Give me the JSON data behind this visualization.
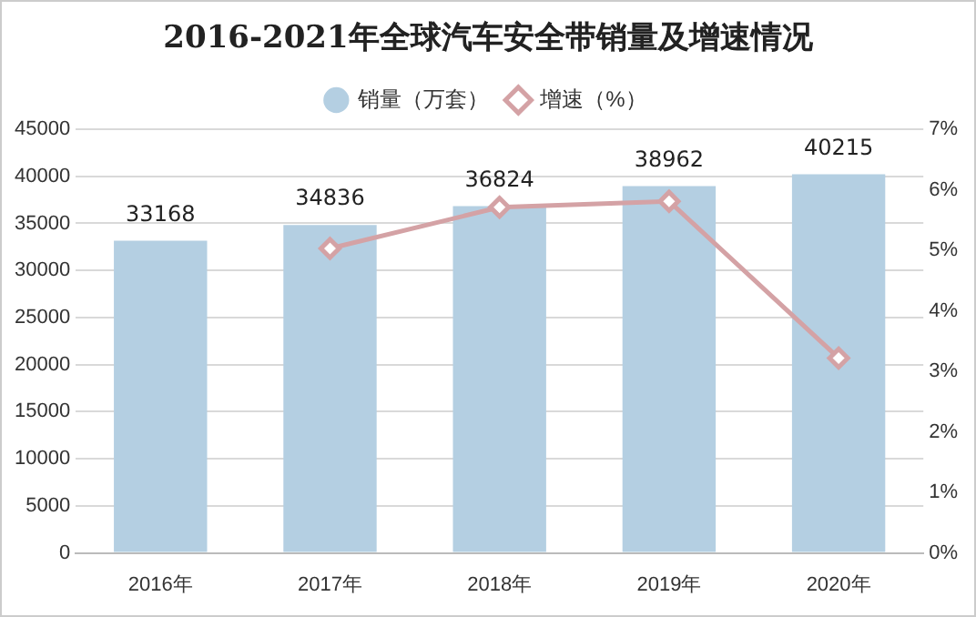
{
  "chart_data": {
    "type": "bar",
    "title": "2016-2021年全球汽车安全带销量及增速情况",
    "categories": [
      "2016年",
      "2017年",
      "2018年",
      "2019年",
      "2020年"
    ],
    "series": [
      {
        "name": "销量（万套）",
        "color": "#b4cfe2",
        "values": [
          33168,
          34836,
          36824,
          38962,
          40215
        ],
        "value_labels": [
          "33168",
          "34836",
          "36824",
          "38962",
          "40215"
        ]
      },
      {
        "name": "增速（%）",
        "type": "line",
        "axis": "y2",
        "color": "#d4a2a5",
        "marker": "diamond",
        "values": [
          null,
          5.03,
          5.71,
          5.81,
          3.22
        ]
      }
    ],
    "ylim": [
      0,
      45000
    ],
    "yticks": [
      0,
      5000,
      10000,
      15000,
      20000,
      25000,
      30000,
      35000,
      40000,
      45000
    ],
    "y2lim": [
      0,
      7
    ],
    "y2ticks": [
      {
        "value": 0,
        "label": "0%"
      },
      {
        "value": 1,
        "label": "1%"
      },
      {
        "value": 2,
        "label": "2%"
      },
      {
        "value": 3,
        "label": "3%"
      },
      {
        "value": 4,
        "label": "4%"
      },
      {
        "value": 5,
        "label": "5%"
      },
      {
        "value": 6,
        "label": "6%"
      },
      {
        "value": 7,
        "label": "7%"
      }
    ],
    "grid": "y",
    "legend": "top"
  }
}
